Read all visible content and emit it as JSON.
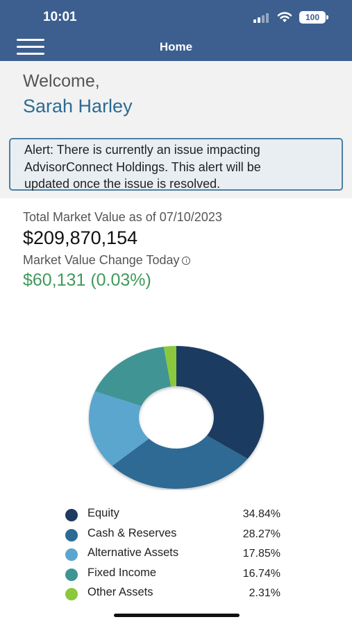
{
  "status_bar": {
    "time": "10:01",
    "battery": "100"
  },
  "header": {
    "title": "Home"
  },
  "welcome": {
    "greeting": "Welcome,",
    "name": "Sarah Harley"
  },
  "alert": {
    "line1": "Alert: There is currently an issue impacting",
    "line2": "AdvisorConnect Holdings. This alert will be",
    "line3": "updated once the issue is resolved."
  },
  "market": {
    "total_label": "Total Market Value as of 07/10/2023",
    "total_value": "$209,870,154",
    "change_label": "Market Value Change Today",
    "change_value": "$60,131 (0.03%)"
  },
  "chart_data": {
    "type": "pie",
    "style": "donut",
    "categories": [
      "Equity",
      "Cash & Reserves",
      "Alternative Assets",
      "Fixed Income",
      "Other Assets"
    ],
    "values": [
      34.84,
      28.27,
      17.85,
      16.74,
      2.31
    ],
    "value_labels": [
      "34.84%",
      "28.27%",
      "17.85%",
      "16.74%",
      "2.31%"
    ],
    "colors": [
      "#1e3a60",
      "#2d6a94",
      "#5aa6cf",
      "#3f9494",
      "#8cc83c"
    ],
    "legend_position": "bottom"
  }
}
